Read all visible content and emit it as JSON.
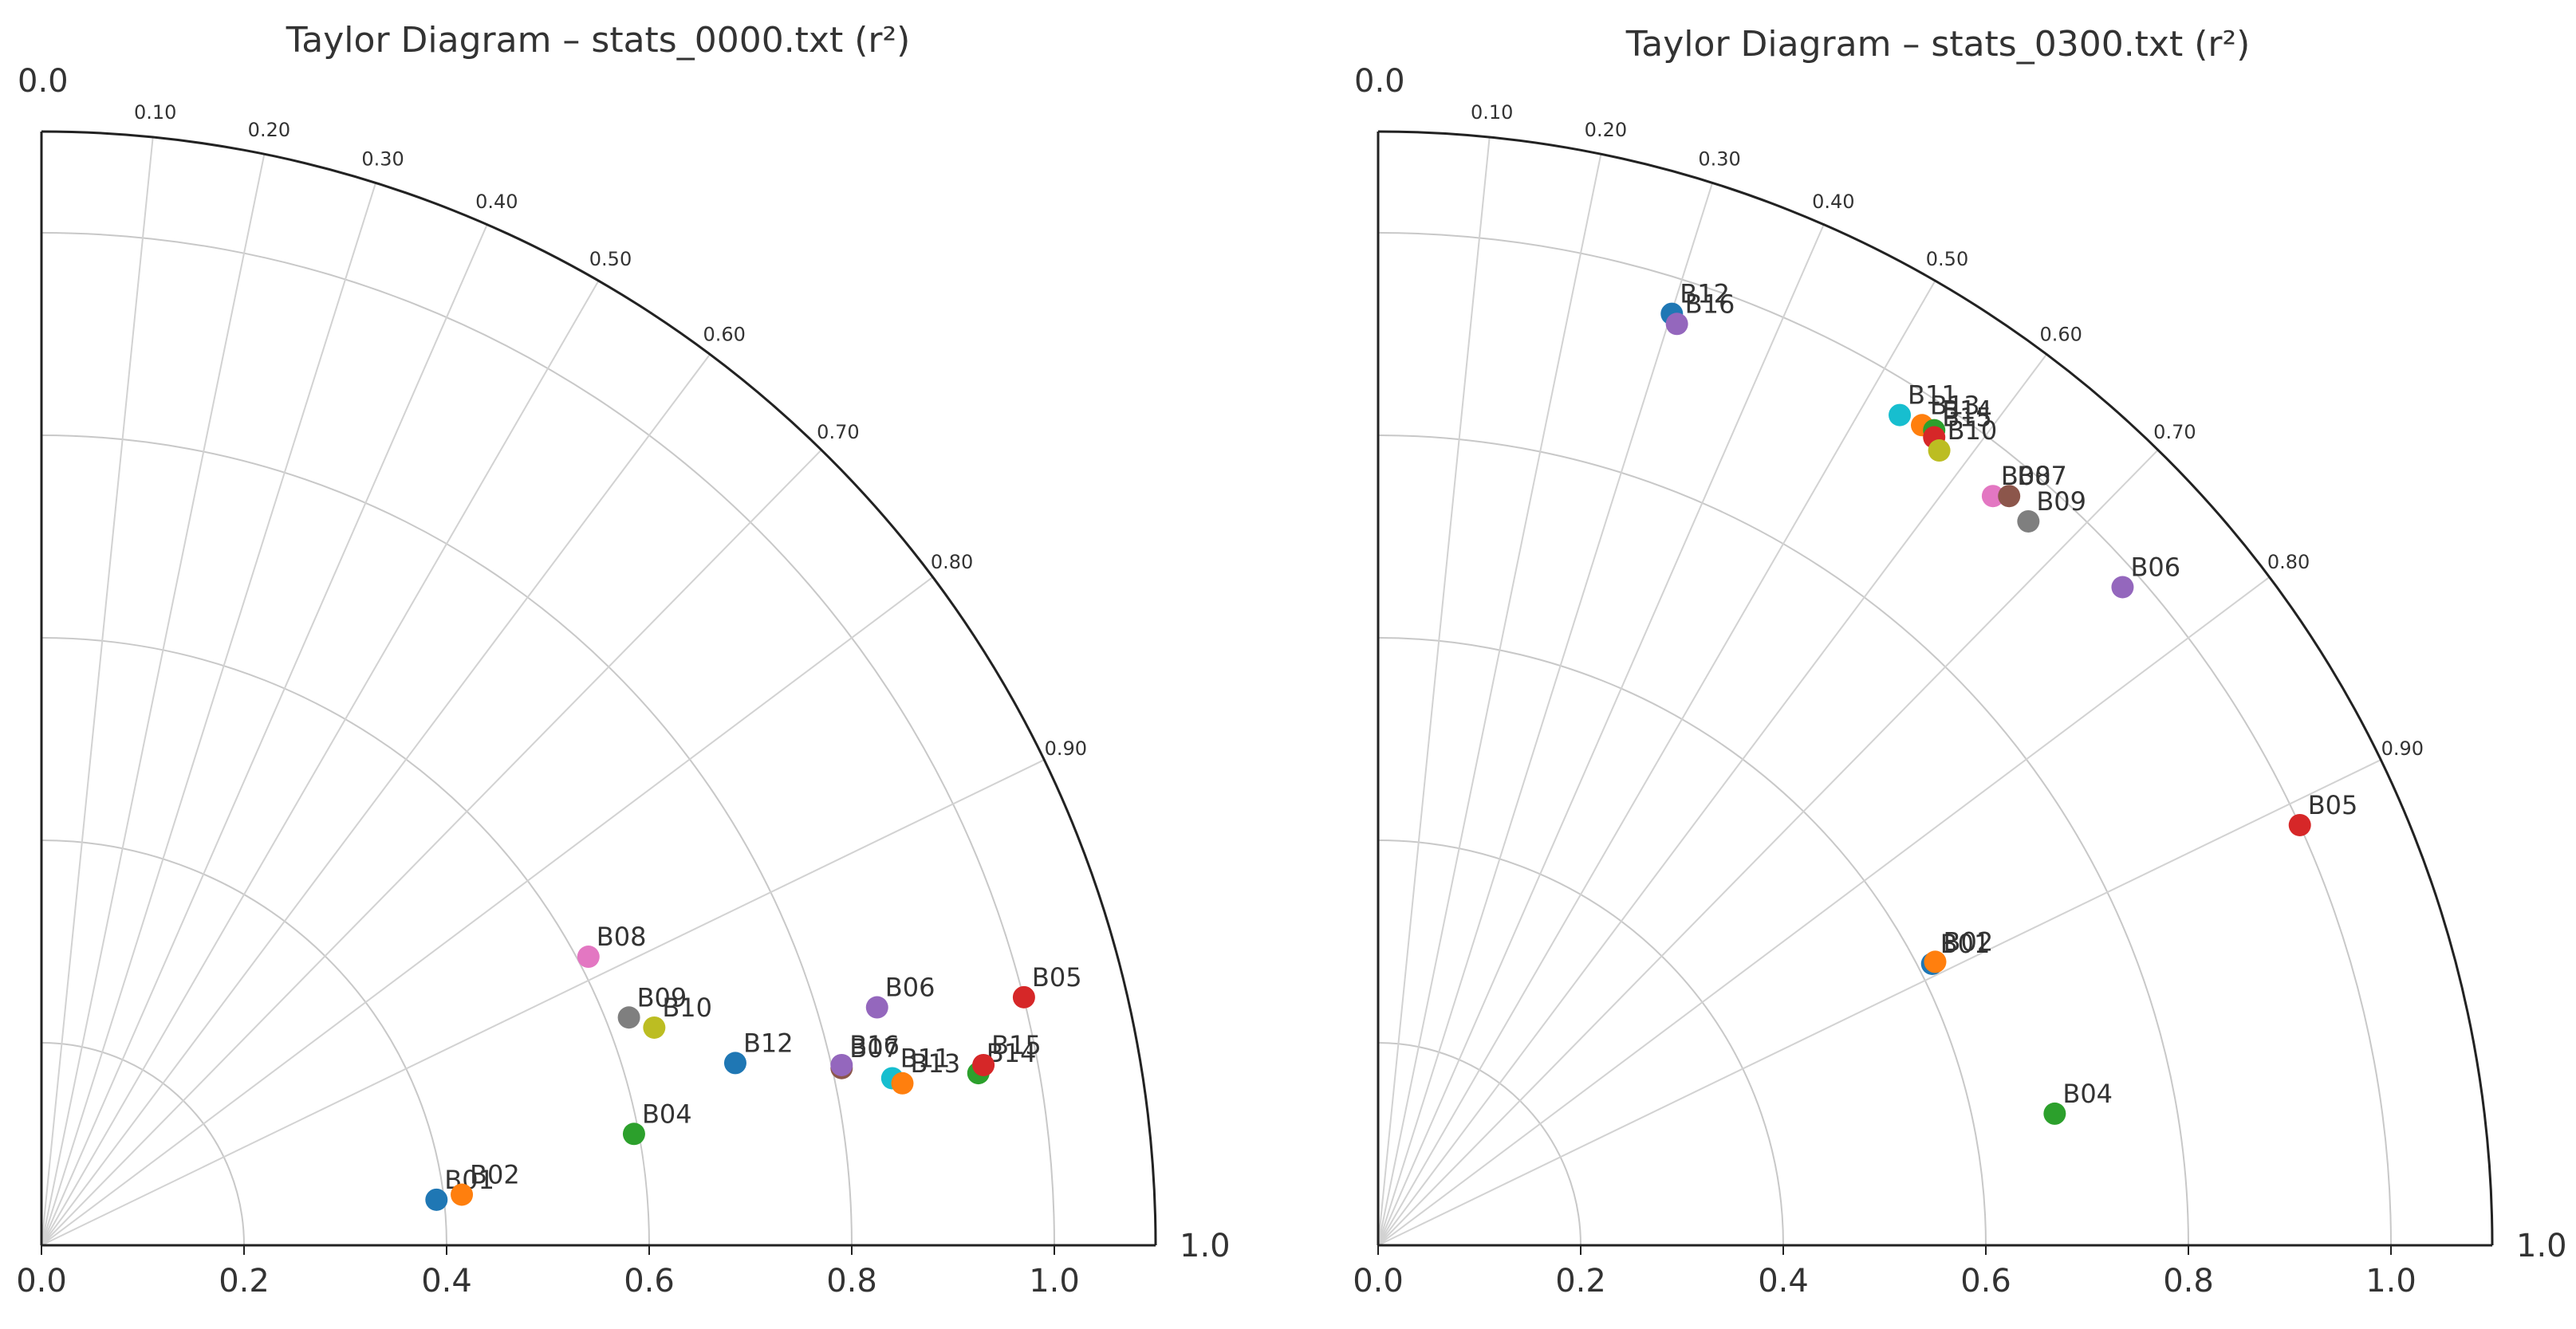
{
  "chart_data": [
    {
      "type": "scatter",
      "subtype": "taylor-diagram",
      "title": "Taylor Diagram – stats_0000.txt (r²)",
      "radial_ticks": [
        "0.0",
        "0.2",
        "0.4",
        "0.6",
        "0.8",
        "1.0"
      ],
      "corner_labels": {
        "top": "0.0",
        "right": "1.0"
      },
      "r_max": 1.1,
      "std_circles": [
        0.2,
        0.4,
        0.6,
        0.8,
        1.0
      ],
      "corr_ticks": [
        "0.10",
        "0.20",
        "0.30",
        "0.40",
        "0.50",
        "0.60",
        "0.70",
        "0.80",
        "0.90"
      ],
      "grid": true,
      "points": [
        {
          "label": "B01",
          "x": 0.39,
          "y": 0.045,
          "color": "#1f77b4"
        },
        {
          "label": "B02",
          "x": 0.415,
          "y": 0.05,
          "color": "#ff7f0e"
        },
        {
          "label": "B04",
          "x": 0.585,
          "y": 0.11,
          "color": "#2ca02c"
        },
        {
          "label": "B05",
          "x": 0.97,
          "y": 0.245,
          "color": "#d62728"
        },
        {
          "label": "B06",
          "x": 0.825,
          "y": 0.235,
          "color": "#9467bd"
        },
        {
          "label": "B07",
          "x": 0.79,
          "y": 0.175,
          "color": "#8c564b"
        },
        {
          "label": "B08",
          "x": 0.54,
          "y": 0.285,
          "color": "#e377c2"
        },
        {
          "label": "B09",
          "x": 0.58,
          "y": 0.225,
          "color": "#7f7f7f"
        },
        {
          "label": "B10",
          "x": 0.605,
          "y": 0.215,
          "color": "#bcbd22"
        },
        {
          "label": "B11",
          "x": 0.84,
          "y": 0.165,
          "color": "#17becf"
        },
        {
          "label": "B12",
          "x": 0.685,
          "y": 0.18,
          "color": "#1f77b4"
        },
        {
          "label": "B13",
          "x": 0.85,
          "y": 0.16,
          "color": "#ff7f0e"
        },
        {
          "label": "B14",
          "x": 0.925,
          "y": 0.17,
          "color": "#2ca02c"
        },
        {
          "label": "B15",
          "x": 0.93,
          "y": 0.178,
          "color": "#d62728"
        },
        {
          "label": "B16",
          "x": 0.79,
          "y": 0.178,
          "color": "#9467bd"
        }
      ]
    },
    {
      "type": "scatter",
      "subtype": "taylor-diagram",
      "title": "Taylor Diagram – stats_0300.txt (r²)",
      "radial_ticks": [
        "0.0",
        "0.2",
        "0.4",
        "0.6",
        "0.8",
        "1.0"
      ],
      "corner_labels": {
        "top": "0.0",
        "right": "1.0"
      },
      "r_max": 1.1,
      "std_circles": [
        0.2,
        0.4,
        0.6,
        0.8,
        1.0
      ],
      "corr_ticks": [
        "0.10",
        "0.20",
        "0.30",
        "0.40",
        "0.50",
        "0.60",
        "0.70",
        "0.80",
        "0.90"
      ],
      "grid": true,
      "points": [
        {
          "label": "B12",
          "x": 0.29,
          "y": 0.92,
          "color": "#1f77b4"
        },
        {
          "label": "B16",
          "x": 0.295,
          "y": 0.91,
          "color": "#9467bd"
        },
        {
          "label": "B11",
          "x": 0.515,
          "y": 0.82,
          "color": "#17becf"
        },
        {
          "label": "B13",
          "x": 0.537,
          "y": 0.81,
          "color": "#ff7f0e"
        },
        {
          "label": "B14",
          "x": 0.549,
          "y": 0.805,
          "color": "#2ca02c"
        },
        {
          "label": "B15",
          "x": 0.549,
          "y": 0.798,
          "color": "#d62728"
        },
        {
          "label": "B10",
          "x": 0.554,
          "y": 0.785,
          "color": "#bcbd22"
        },
        {
          "label": "B08",
          "x": 0.607,
          "y": 0.74,
          "color": "#e377c2"
        },
        {
          "label": "B07",
          "x": 0.623,
          "y": 0.74,
          "color": "#8c564b"
        },
        {
          "label": "B09",
          "x": 0.642,
          "y": 0.715,
          "color": "#7f7f7f"
        },
        {
          "label": "B06",
          "x": 0.735,
          "y": 0.65,
          "color": "#9467bd"
        },
        {
          "label": "B05",
          "x": 0.91,
          "y": 0.415,
          "color": "#d62728"
        },
        {
          "label": "B01",
          "x": 0.547,
          "y": 0.278,
          "color": "#1f77b4"
        },
        {
          "label": "B02",
          "x": 0.55,
          "y": 0.28,
          "color": "#ff7f0e"
        },
        {
          "label": "B04",
          "x": 0.668,
          "y": 0.13,
          "color": "#2ca02c"
        }
      ]
    }
  ]
}
